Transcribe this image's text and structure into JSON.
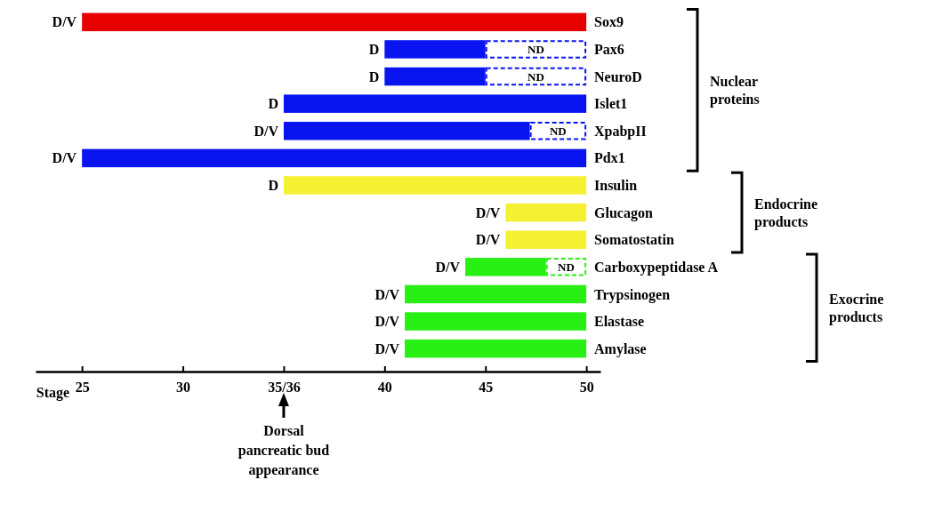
{
  "chart_data": {
    "type": "bar",
    "orientation": "horizontal",
    "categories": [
      "Sox9",
      "Pax6",
      "NeuroD",
      "Islet1",
      "XpabpII",
      "Pdx1",
      "Insulin",
      "Glucagon",
      "Somatostatin",
      "Carboxypeptidase A",
      "Trypsinogen",
      "Elastase",
      "Amylase"
    ],
    "series": [
      {
        "line_style": "solid",
        "colors": [
          "#e60000",
          "#0a14f0",
          "#0a14f0",
          "#0a14f0",
          "#0a14f0",
          "#0a14f0",
          "#f5f032",
          "#f5f032",
          "#f5f032",
          "#28f014",
          "#28f014",
          "#28f014",
          "#28f014"
        ],
        "base": [
          25,
          40,
          40,
          35,
          35,
          25,
          35,
          46,
          46,
          44,
          41,
          41,
          41
        ],
        "values": [
          25,
          5,
          5,
          15,
          12.2,
          25,
          15,
          4,
          4,
          4,
          9,
          9,
          9
        ],
        "value_labels": [
          "D/V",
          "D",
          "D",
          "D",
          "D/V",
          "D/V",
          "D",
          "D/V",
          "D/V",
          "D/V",
          "D/V",
          "D/V",
          "D/V"
        ]
      },
      {
        "line_style": "dashed",
        "colors": [
          null,
          "#0a14f0",
          "#0a14f0",
          null,
          "#0a14f0",
          null,
          null,
          null,
          null,
          "#28f014",
          null,
          null,
          null
        ],
        "base": [
          null,
          45,
          45,
          null,
          47.2,
          null,
          null,
          null,
          null,
          48,
          null,
          null,
          null
        ],
        "values": [
          null,
          5,
          5,
          null,
          2.8,
          null,
          null,
          null,
          null,
          2,
          null,
          null,
          null
        ],
        "value_labels": [
          null,
          "ND",
          "ND",
          null,
          "ND",
          null,
          null,
          null,
          null,
          "ND",
          null,
          null,
          null
        ]
      }
    ],
    "xlabel": "Stage",
    "xlim": [
      22.7,
      50.7
    ],
    "xticks": [
      25,
      30,
      {
        "value": 35,
        "label": "35/36"
      },
      40,
      45,
      50
    ],
    "annotations": [
      "Nuclear proteins",
      "Endocrine products",
      "Exocrine products",
      "Dorsal pancreatic bud appearance"
    ]
  }
}
